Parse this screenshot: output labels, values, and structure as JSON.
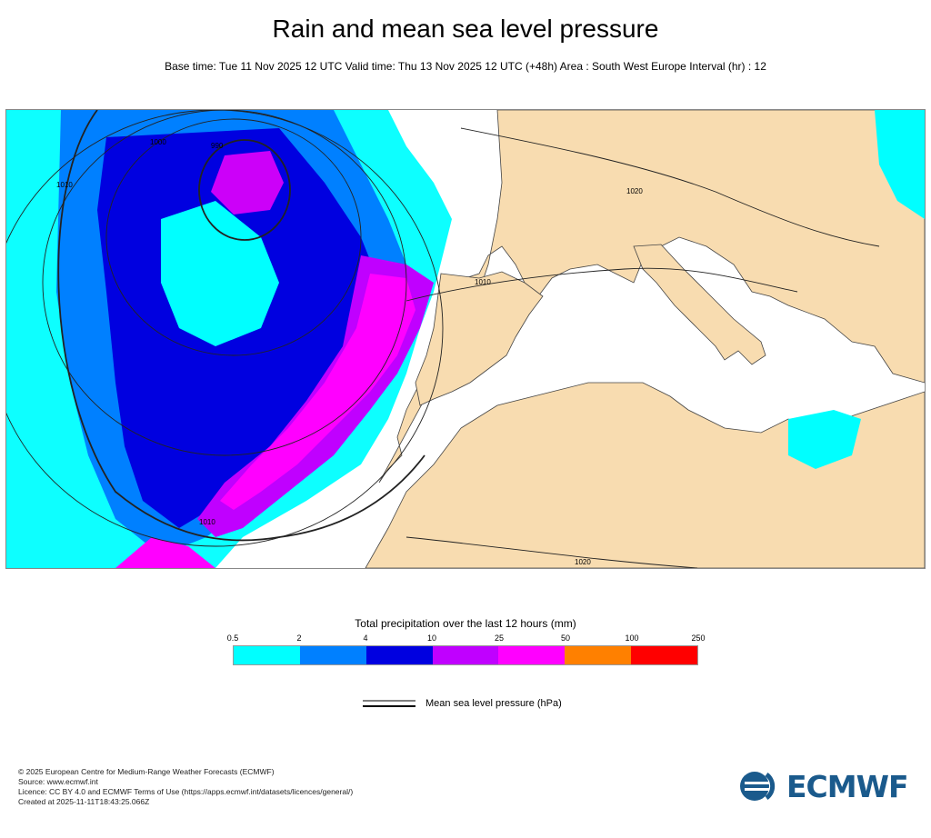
{
  "title": "Rain and mean sea level pressure",
  "subtitle": "Base time: Tue 11 Nov 2025 12 UTC Valid time: Thu 13 Nov 2025 12 UTC (+48h) Area : South West Europe Interval (hr) : 12",
  "map": {
    "isobar_labels": [
      "1000",
      "990",
      "1010",
      "1020",
      "1010",
      "1010",
      "1020"
    ]
  },
  "legend": {
    "title": "Total precipitation over the last 12 hours (mm)",
    "ticks": [
      "0.5",
      "2",
      "4",
      "10",
      "25",
      "50",
      "100",
      "250"
    ],
    "colors": [
      "#00ffff",
      "#0080ff",
      "#0000e0",
      "#c000ff",
      "#ff00ff",
      "#ff8000",
      "#ff0000"
    ],
    "msl_label": "Mean sea level pressure (hPa)"
  },
  "credits": [
    "© 2025 European Centre for Medium-Range Weather Forecasts (ECMWF)",
    "Source: www.ecmwf.int",
    "Licence: CC BY 4.0 and ECMWF Terms of Use (https://apps.ecmwf.int/datasets/licences/general/)",
    "Created at 2025-11-11T18:43:25.066Z"
  ],
  "logo": {
    "text": "ECMWF",
    "color": "#1a5a8c",
    "icon": "ecmwf-logo-icon"
  }
}
